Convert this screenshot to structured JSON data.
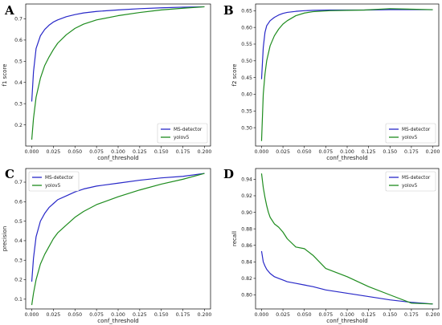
{
  "colors": {
    "ms_detector": "#2828c8",
    "yolov5": "#1e8c1e"
  },
  "chart_data": [
    {
      "panel": "A",
      "type": "line",
      "xlabel": "conf_threshold",
      "ylabel": "f1 score",
      "xlim": [
        -0.007,
        0.207
      ],
      "ylim": [
        0.1,
        0.77
      ],
      "xticks": [
        0.0,
        0.025,
        0.05,
        0.075,
        0.1,
        0.125,
        0.15,
        0.175,
        0.2
      ],
      "xtick_labels": [
        "0.000",
        "0.025",
        "0.050",
        "0.075",
        "0.100",
        "0.125",
        "0.150",
        "0.175",
        "0.200"
      ],
      "yticks": [
        0.2,
        0.3,
        0.4,
        0.5,
        0.6,
        0.7
      ],
      "ytick_labels": [
        "0.2",
        "0.3",
        "0.4",
        "0.5",
        "0.6",
        "0.7"
      ],
      "legend_position": "lower-right",
      "series": [
        {
          "name": "MS-detector",
          "color_key": "ms_detector",
          "x": [
            0.0,
            0.002,
            0.005,
            0.01,
            0.015,
            0.02,
            0.025,
            0.03,
            0.04,
            0.05,
            0.06,
            0.075,
            0.1,
            0.125,
            0.15,
            0.175,
            0.2
          ],
          "y": [
            0.31,
            0.45,
            0.56,
            0.62,
            0.65,
            0.67,
            0.685,
            0.695,
            0.71,
            0.72,
            0.728,
            0.735,
            0.742,
            0.748,
            0.752,
            0.755,
            0.757
          ]
        },
        {
          "name": "yolov5",
          "color_key": "yolov5",
          "x": [
            0.0,
            0.002,
            0.005,
            0.01,
            0.015,
            0.02,
            0.025,
            0.03,
            0.04,
            0.05,
            0.06,
            0.075,
            0.1,
            0.125,
            0.15,
            0.175,
            0.2
          ],
          "y": [
            0.13,
            0.23,
            0.33,
            0.42,
            0.48,
            0.52,
            0.555,
            0.585,
            0.625,
            0.655,
            0.675,
            0.695,
            0.715,
            0.73,
            0.742,
            0.75,
            0.757
          ]
        }
      ]
    },
    {
      "panel": "B",
      "type": "line",
      "xlabel": "conf_threshold",
      "ylabel": "f2 score",
      "xlim": [
        -0.007,
        0.207
      ],
      "ylim": [
        0.245,
        0.67
      ],
      "xticks": [
        0.0,
        0.025,
        0.05,
        0.075,
        0.1,
        0.125,
        0.15,
        0.175,
        0.2
      ],
      "xtick_labels": [
        "0.000",
        "0.025",
        "0.050",
        "0.075",
        "0.100",
        "0.125",
        "0.150",
        "0.175",
        "0.200"
      ],
      "yticks": [
        0.3,
        0.35,
        0.4,
        0.45,
        0.5,
        0.55,
        0.6,
        0.65
      ],
      "ytick_labels": [
        "0.30",
        "0.35",
        "0.40",
        "0.45",
        "0.50",
        "0.55",
        "0.60",
        "0.65"
      ],
      "legend_position": "lower-right",
      "series": [
        {
          "name": "MS-detector",
          "color_key": "ms_detector",
          "x": [
            0.0,
            0.002,
            0.004,
            0.006,
            0.01,
            0.015,
            0.02,
            0.025,
            0.03,
            0.04,
            0.05,
            0.06,
            0.08,
            0.1,
            0.12,
            0.15,
            0.2
          ],
          "y": [
            0.445,
            0.54,
            0.585,
            0.605,
            0.62,
            0.63,
            0.637,
            0.642,
            0.645,
            0.648,
            0.65,
            0.651,
            0.652,
            0.652,
            0.652,
            0.653,
            0.653
          ]
        },
        {
          "name": "yolov5",
          "color_key": "yolov5",
          "x": [
            0.0,
            0.002,
            0.004,
            0.006,
            0.01,
            0.015,
            0.02,
            0.025,
            0.03,
            0.04,
            0.05,
            0.06,
            0.08,
            0.1,
            0.12,
            0.15,
            0.2
          ],
          "y": [
            0.26,
            0.4,
            0.46,
            0.5,
            0.545,
            0.575,
            0.595,
            0.61,
            0.62,
            0.635,
            0.643,
            0.647,
            0.65,
            0.651,
            0.652,
            0.656,
            0.653
          ]
        }
      ]
    },
    {
      "panel": "C",
      "type": "line",
      "xlabel": "conf_threshold",
      "ylabel": "precision",
      "xlim": [
        -0.007,
        0.207
      ],
      "ylim": [
        0.05,
        0.77
      ],
      "xticks": [
        0.0,
        0.025,
        0.05,
        0.075,
        0.1,
        0.125,
        0.15,
        0.175,
        0.2
      ],
      "xtick_labels": [
        "0.000",
        "0.025",
        "0.050",
        "0.075",
        "0.100",
        "0.125",
        "0.150",
        "0.175",
        "0.200"
      ],
      "yticks": [
        0.1,
        0.2,
        0.3,
        0.4,
        0.5,
        0.6,
        0.7
      ],
      "ytick_labels": [
        "0.1",
        "0.2",
        "0.3",
        "0.4",
        "0.5",
        "0.6",
        "0.7"
      ],
      "legend_position": "upper-left",
      "series": [
        {
          "name": "MS-detector",
          "color_key": "ms_detector",
          "x": [
            0.0,
            0.002,
            0.005,
            0.01,
            0.015,
            0.02,
            0.025,
            0.03,
            0.04,
            0.05,
            0.06,
            0.075,
            0.1,
            0.125,
            0.15,
            0.175,
            0.2
          ],
          "y": [
            0.19,
            0.31,
            0.42,
            0.5,
            0.54,
            0.57,
            0.59,
            0.61,
            0.63,
            0.65,
            0.665,
            0.68,
            0.695,
            0.71,
            0.722,
            0.73,
            0.745
          ]
        },
        {
          "name": "yolov5",
          "color_key": "yolov5",
          "x": [
            0.0,
            0.002,
            0.005,
            0.01,
            0.015,
            0.02,
            0.025,
            0.03,
            0.04,
            0.05,
            0.06,
            0.075,
            0.1,
            0.125,
            0.15,
            0.175,
            0.2
          ],
          "y": [
            0.07,
            0.13,
            0.2,
            0.28,
            0.33,
            0.37,
            0.41,
            0.44,
            0.48,
            0.52,
            0.55,
            0.585,
            0.625,
            0.66,
            0.69,
            0.715,
            0.745
          ]
        }
      ]
    },
    {
      "panel": "D",
      "type": "line",
      "xlabel": "conf_threshold",
      "ylabel": "recall",
      "xlim": [
        -0.007,
        0.207
      ],
      "ylim": [
        0.783,
        0.953
      ],
      "xticks": [
        0.0,
        0.025,
        0.05,
        0.075,
        0.1,
        0.125,
        0.15,
        0.175,
        0.2
      ],
      "xtick_labels": [
        "0.000",
        "0.025",
        "0.050",
        "0.075",
        "0.100",
        "0.125",
        "0.150",
        "0.175",
        "0.200"
      ],
      "yticks": [
        0.8,
        0.82,
        0.84,
        0.86,
        0.88,
        0.9,
        0.92,
        0.94
      ],
      "ytick_labels": [
        "0.80",
        "0.82",
        "0.84",
        "0.86",
        "0.88",
        "0.90",
        "0.92",
        "0.94"
      ],
      "legend_position": "upper-right",
      "series": [
        {
          "name": "MS-detector",
          "color_key": "ms_detector",
          "x": [
            0.0,
            0.002,
            0.004,
            0.006,
            0.01,
            0.015,
            0.02,
            0.025,
            0.03,
            0.04,
            0.05,
            0.06,
            0.075,
            0.1,
            0.125,
            0.15,
            0.175,
            0.2
          ],
          "y": [
            0.853,
            0.84,
            0.835,
            0.831,
            0.826,
            0.822,
            0.82,
            0.818,
            0.816,
            0.814,
            0.812,
            0.81,
            0.806,
            0.802,
            0.798,
            0.794,
            0.791,
            0.789
          ]
        },
        {
          "name": "yolov5",
          "color_key": "yolov5",
          "x": [
            0.0,
            0.002,
            0.004,
            0.006,
            0.008,
            0.01,
            0.015,
            0.02,
            0.025,
            0.03,
            0.04,
            0.05,
            0.06,
            0.075,
            0.1,
            0.125,
            0.15,
            0.175,
            0.2
          ],
          "y": [
            0.947,
            0.93,
            0.918,
            0.908,
            0.9,
            0.894,
            0.886,
            0.882,
            0.876,
            0.868,
            0.858,
            0.856,
            0.848,
            0.832,
            0.822,
            0.81,
            0.8,
            0.79,
            0.789
          ]
        }
      ]
    }
  ]
}
